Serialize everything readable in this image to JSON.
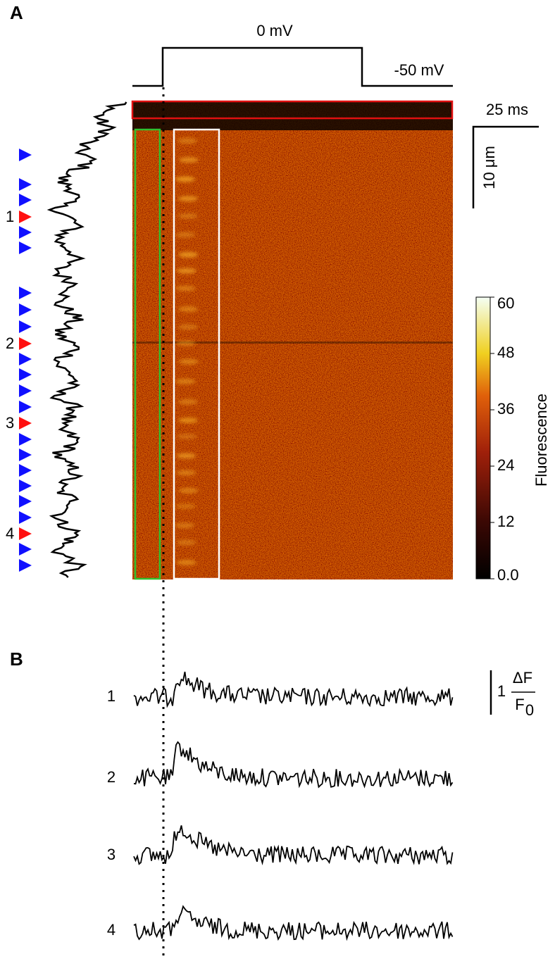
{
  "panel_a": {
    "label": "A",
    "voltage_high": "0 mV",
    "voltage_low": "-50 mV",
    "time_scale": "25 ms",
    "space_scale": "10 μm",
    "markers": [
      "1",
      "2",
      "3",
      "4"
    ],
    "colorbar": {
      "label": "Fluorescence",
      "lim": [
        0,
        60
      ],
      "ticks": [
        {
          "value": 0,
          "label": "0.0"
        },
        12,
        24,
        36,
        48,
        60
      ]
    }
  },
  "panel_b": {
    "label": "B",
    "traces": [
      "1",
      "2",
      "3",
      "4"
    ],
    "scale_value": "1",
    "scale_numerator": "ΔF",
    "scale_denominator": "F",
    "scale_subscript": "0"
  }
}
